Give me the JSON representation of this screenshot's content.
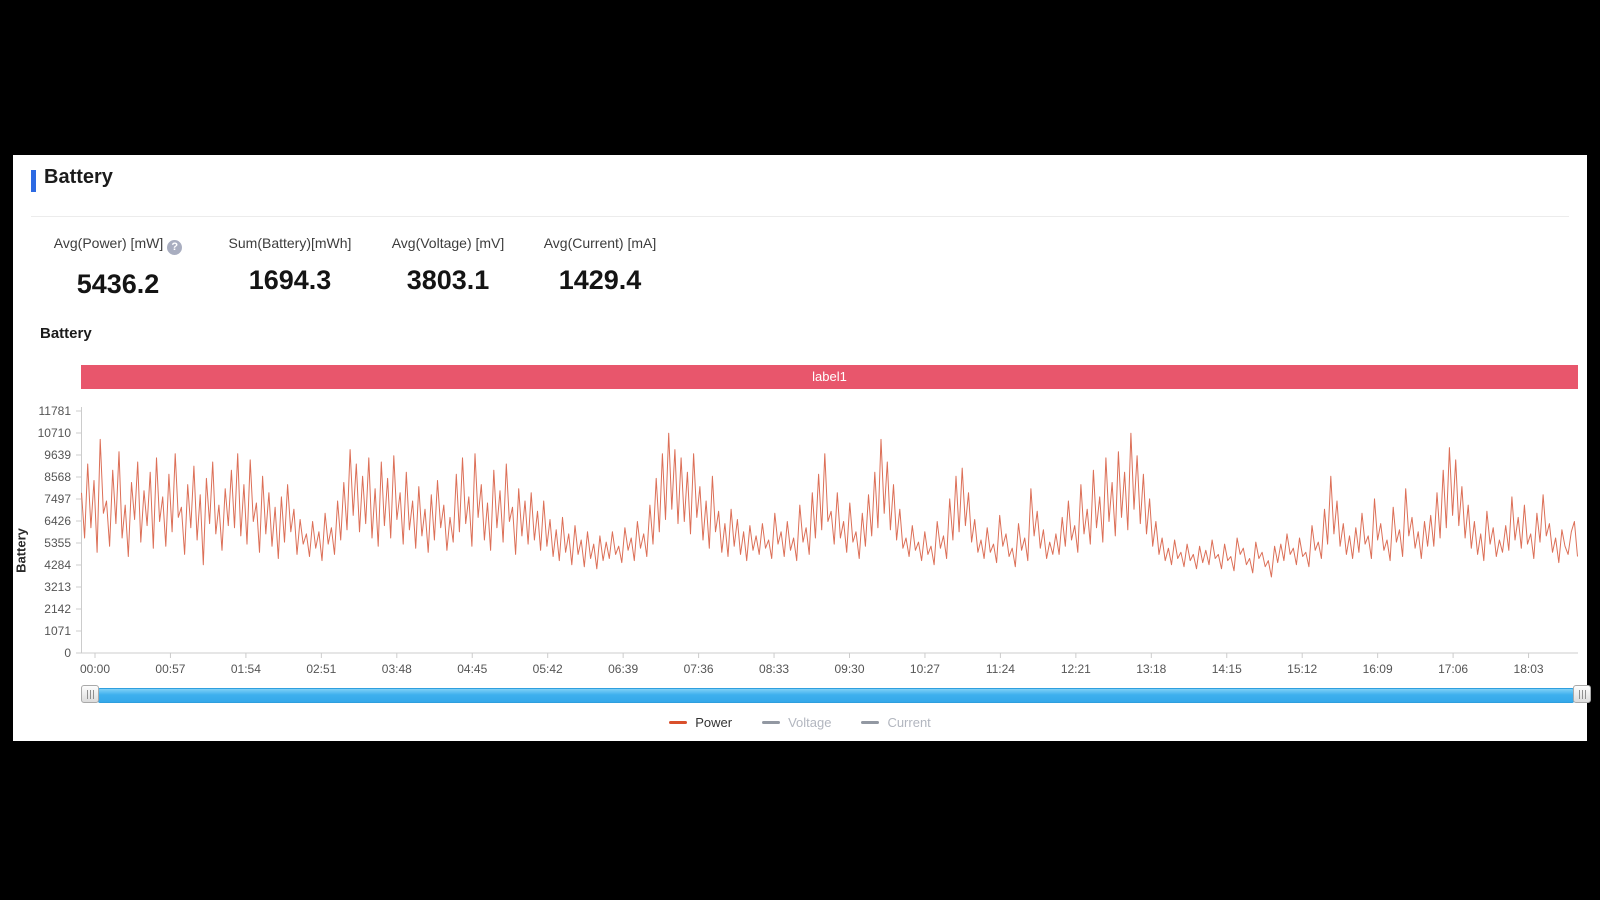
{
  "panel": {
    "title": "Battery",
    "section_title": "Battery",
    "help_icon": "?"
  },
  "stats": [
    {
      "label": "Avg(Power) [mW]",
      "value": "5436.2"
    },
    {
      "label": "Sum(Battery)[mWh]",
      "value": "1694.3"
    },
    {
      "label": "Avg(Voltage) [mV]",
      "value": "3803.1"
    },
    {
      "label": "Avg(Current) [mA]",
      "value": "1429.4"
    }
  ],
  "colors": {
    "accent_blue": "#2d6ae3",
    "banner_red": "#e8566c",
    "line_salmon": "#dc6f57",
    "legend_power": "#d9502c",
    "legend_disabled": "#9298a2",
    "slider_blue": "#3eb0ee",
    "axis_gray": "#cccccc",
    "tick_text": "#555555"
  },
  "chart_data": {
    "type": "line",
    "title": "Battery",
    "banner_label": "label1",
    "ylabel": "Battery",
    "xlabel": "",
    "ylim": [
      0,
      11781
    ],
    "grid": false,
    "legend_position": "bottom",
    "yticks": [
      0,
      1071,
      2142,
      3213,
      4284,
      5355,
      6426,
      7497,
      8568,
      9639,
      10710,
      11781
    ],
    "xticks": [
      "00:00",
      "00:57",
      "01:54",
      "02:51",
      "03:48",
      "04:45",
      "05:42",
      "06:39",
      "07:36",
      "08:33",
      "09:30",
      "10:27",
      "11:24",
      "12:21",
      "13:18",
      "14:15",
      "15:12",
      "16:09",
      "17:06",
      "18:03"
    ],
    "series": [
      {
        "name": "Power",
        "unit": "mW",
        "enabled": true,
        "values": [
          7800,
          5600,
          9200,
          6100,
          8400,
          4900,
          10400,
          6800,
          7400,
          5200,
          8900,
          6300,
          9800,
          5600,
          7200,
          4700,
          8300,
          6500,
          9300,
          5400,
          7900,
          6200,
          8800,
          5100,
          9500,
          6400,
          7600,
          5200,
          8700,
          5900,
          9700,
          6600,
          7100,
          4800,
          8200,
          6100,
          9100,
          5500,
          7700,
          4300,
          8500,
          6300,
          9300,
          5800,
          7200,
          5000,
          8000,
          6200,
          8900,
          6100,
          9700,
          5700,
          8200,
          5300,
          9400,
          6400,
          7300,
          4900,
          8600,
          5800,
          7800,
          5200,
          7100,
          4600,
          7600,
          5400,
          8200,
          5900,
          7000,
          4800,
          6500,
          5300,
          5800,
          4700,
          6400,
          5100,
          5900,
          4500,
          6800,
          5300,
          6100,
          4800,
          7400,
          5500,
          8300,
          6000,
          9900,
          6700,
          9200,
          5900,
          8600,
          6300,
          9500,
          5600,
          8000,
          5200,
          9300,
          6200,
          8500,
          5600,
          9600,
          6500,
          7800,
          5300,
          8800,
          6000,
          7400,
          5100,
          8100,
          5700,
          7000,
          4900,
          7700,
          5500,
          8400,
          6100,
          7200,
          5000,
          6600,
          5400,
          8700,
          5900,
          9500,
          6300,
          7600,
          5200,
          9700,
          6600,
          8200,
          5500,
          7300,
          5000,
          8900,
          6100,
          7900,
          5400,
          9200,
          6400,
          7100,
          4800,
          8000,
          5700,
          7400,
          5300,
          7800,
          5500,
          6900,
          5000,
          7400,
          5200,
          6500,
          4700,
          6000,
          4500,
          6600,
          4900,
          5800,
          4300,
          6200,
          4800,
          5500,
          4200,
          5900,
          4600,
          5300,
          4100,
          5700,
          4500,
          5400,
          4600,
          5900,
          4800,
          5200,
          4400,
          6100,
          5000,
          5600,
          4500,
          6400,
          5100,
          5800,
          4700,
          7200,
          5300,
          8500,
          5900,
          9700,
          6500,
          10700,
          7000,
          9900,
          6300,
          9500,
          6400,
          8800,
          5800,
          9700,
          6600,
          8100,
          5500,
          7400,
          5100,
          8600,
          5900,
          6900,
          4900,
          6300,
          4700,
          7000,
          5200,
          6500,
          4800,
          5900,
          4500,
          6200,
          5000,
          5700,
          4800,
          6300,
          5100,
          5500,
          4600,
          6800,
          5300,
          5900,
          4700,
          6400,
          5000,
          5600,
          4500,
          7200,
          5400,
          6100,
          4800,
          7800,
          5600,
          8700,
          6000,
          9700,
          6400,
          6900,
          5300,
          7800,
          5600,
          6400,
          4900,
          7300,
          5400,
          5900,
          4600,
          6800,
          5200,
          7700,
          5700,
          8800,
          6100,
          10400,
          6800,
          9300,
          6000,
          8200,
          5500,
          7000,
          5100,
          5600,
          4700,
          6200,
          5000,
          5400,
          4500,
          5900,
          4800,
          5200,
          4300,
          6400,
          5100,
          5700,
          4600,
          7500,
          5500,
          8600,
          5900,
          9000,
          6200,
          7800,
          5400,
          6500,
          4900,
          5500,
          4600,
          6100,
          4900,
          5300,
          4400,
          6700,
          5200,
          5800,
          4700,
          5100,
          4200,
          6300,
          5000,
          5600,
          4500,
          8000,
          5700,
          6900,
          5100,
          6000,
          4600,
          5400,
          4800,
          5800,
          4800,
          6600,
          5200,
          7400,
          5500,
          6200,
          4900,
          8200,
          5800,
          7000,
          5300,
          8900,
          6100,
          7600,
          5400,
          9500,
          6400,
          8300,
          5700,
          9800,
          6600,
          8800,
          6000,
          10700,
          7000,
          9600,
          6300,
          8700,
          5800,
          7500,
          5200,
          6400,
          4800,
          5600,
          4500,
          5100,
          4300,
          5500,
          4600,
          4900,
          4200,
          5300,
          4500,
          4800,
          4100,
          5200,
          4400,
          5000,
          4300,
          5500,
          4600,
          4800,
          4100,
          5300,
          4500,
          4700,
          4000,
          5600,
          4800,
          5100,
          4300,
          4600,
          3900,
          5400,
          4600,
          4900,
          4200,
          4500,
          3700,
          5200,
          4400,
          5300,
          4500,
          5800,
          4800,
          5100,
          4300,
          5600,
          4700,
          4900,
          4200,
          6200,
          5000,
          5400,
          4600,
          7000,
          5300,
          8600,
          5800,
          7400,
          5200,
          6300,
          4800,
          5700,
          4600,
          6100,
          4900,
          6800,
          5300,
          5700,
          4600,
          7500,
          5500,
          6300,
          5000,
          5500,
          4500,
          7100,
          5400,
          6000,
          4700,
          8000,
          5700,
          6600,
          5100,
          5900,
          4600,
          6400,
          5200,
          6700,
          5200,
          7800,
          5600,
          8900,
          6100,
          10000,
          6700,
          9400,
          6200,
          8100,
          5600,
          7200,
          5100,
          6400,
          4800,
          5800,
          4500,
          6900,
          5300,
          6100,
          4700,
          5500,
          4900,
          6200,
          5000,
          7600,
          5500,
          6600,
          5100,
          7200,
          5300,
          5800,
          4600,
          6800,
          5400,
          7700,
          5700,
          6300,
          4900,
          5600,
          4400,
          6000,
          5200,
          4800,
          5900,
          6400,
          4700
        ]
      },
      {
        "name": "Voltage",
        "unit": "mV",
        "enabled": false,
        "values": []
      },
      {
        "name": "Current",
        "unit": "mA",
        "enabled": false,
        "values": []
      }
    ]
  }
}
